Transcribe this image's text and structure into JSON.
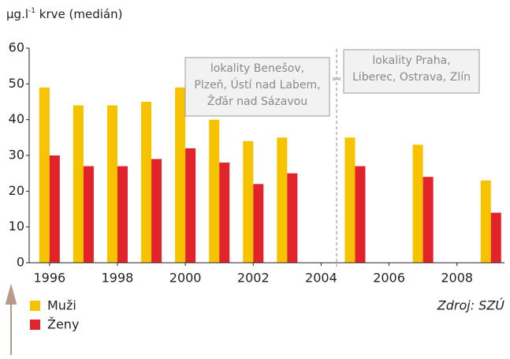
{
  "chart_data": {
    "type": "bar",
    "y_label": [
      "µg.l",
      "-1",
      " krve (medián)"
    ],
    "x": [
      1996,
      1997,
      1998,
      1999,
      2000,
      2001,
      2002,
      2003,
      2005,
      2007,
      2009
    ],
    "series": [
      {
        "name": "Muži",
        "color": "#f7c300",
        "values": [
          49,
          44,
          44,
          45,
          49,
          40,
          34,
          35,
          35,
          33,
          23
        ]
      },
      {
        "name": "Ženy",
        "color": "#e3232b",
        "values": [
          30,
          27,
          27,
          29,
          32,
          28,
          22,
          25,
          27,
          24,
          14
        ]
      }
    ],
    "xlim": [
      1995.4,
      2009.4
    ],
    "xticks": [
      1996,
      1998,
      2000,
      2002,
      2004,
      2006,
      2008
    ],
    "ylim": [
      0,
      60
    ],
    "yticks": [
      0,
      10,
      20,
      30,
      40,
      50,
      60
    ],
    "grid": false,
    "annotations": [
      {
        "lines": [
          "lokality Benešov,",
          "Plzeň, Ústí nad Labem,",
          "Žďár nad Sázavou"
        ]
      },
      {
        "lines": [
          "lokality Praha,",
          "Liberec, Ostrava, Zlín"
        ]
      }
    ],
    "source": "Zdroj: SZÚ"
  }
}
